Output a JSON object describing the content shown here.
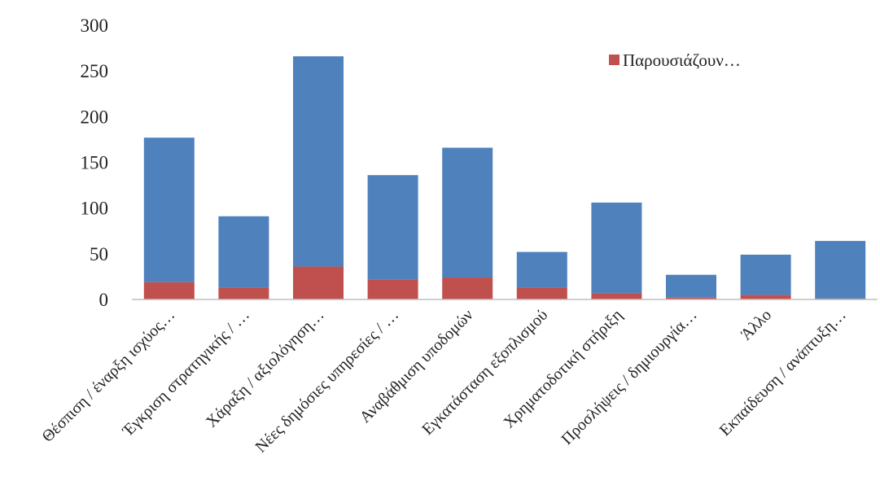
{
  "chart_data": {
    "type": "bar",
    "stacked": true,
    "categories": [
      "Θέσπιση / έναρξη ισχύος…",
      "Έγκριση στρατηγικής / …",
      "Χάραξη / αξιολόγηση…",
      "Νέες δημόσιες υπηρεσίες / …",
      "Αναβάθμιση υποδομών",
      "Εγκατάσταση εξοπλισμού",
      "Χρηματοδοτική στήριξη",
      "Προσλήψεις / δημιουργία…",
      "Άλλο",
      "Εκπαίδευση / ανάπτυξη…"
    ],
    "series": [
      {
        "name": "Παρουσιάζουν…",
        "color": "#c0504d",
        "values": [
          19,
          13,
          36,
          22,
          24,
          13,
          7,
          2,
          5,
          1
        ]
      },
      {
        "name": "",
        "color": "#4f81bd",
        "values": [
          158,
          78,
          230,
          114,
          142,
          39,
          99,
          25,
          44,
          63
        ]
      }
    ],
    "ylim": [
      0,
      300
    ],
    "yticks": [
      0,
      50,
      100,
      150,
      200,
      250,
      300
    ],
    "grid": false,
    "legend_position": "top-right",
    "title": "",
    "xlabel": "",
    "ylabel": ""
  }
}
